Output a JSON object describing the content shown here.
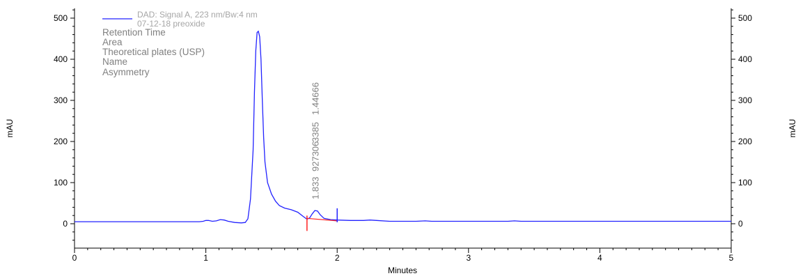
{
  "chart_data": {
    "type": "line",
    "xlabel": "Minutes",
    "ylabel_left": "mAU",
    "ylabel_right": "mAU",
    "xlim": [
      0,
      5
    ],
    "ylim": [
      -60,
      520
    ],
    "x_ticks": [
      0,
      1,
      2,
      3,
      4,
      5
    ],
    "y_ticks": [
      0,
      100,
      200,
      300,
      400,
      500
    ],
    "legend": {
      "series_label": "DAD: Signal A, 223 nm/Bw:4 nm",
      "sample_label": "07-12-18 preoxide"
    },
    "info_labels": [
      "Retention Time",
      "Area",
      "Theoretical plates (USP)",
      "Name",
      "Asymmetry"
    ],
    "series": [
      {
        "name": "DAD: Signal A, 223 nm/Bw:4 nm",
        "color": "#2222ff",
        "points": [
          [
            0.0,
            5
          ],
          [
            0.5,
            5
          ],
          [
            0.95,
            5
          ],
          [
            0.98,
            6
          ],
          [
            1.0,
            8
          ],
          [
            1.02,
            8
          ],
          [
            1.05,
            6
          ],
          [
            1.08,
            7
          ],
          [
            1.11,
            10
          ],
          [
            1.14,
            9
          ],
          [
            1.17,
            6
          ],
          [
            1.22,
            3
          ],
          [
            1.27,
            2
          ],
          [
            1.3,
            3
          ],
          [
            1.32,
            12
          ],
          [
            1.34,
            60
          ],
          [
            1.36,
            180
          ],
          [
            1.37,
            320
          ],
          [
            1.38,
            420
          ],
          [
            1.39,
            465
          ],
          [
            1.4,
            468
          ],
          [
            1.41,
            455
          ],
          [
            1.42,
            400
          ],
          [
            1.43,
            300
          ],
          [
            1.44,
            210
          ],
          [
            1.45,
            150
          ],
          [
            1.47,
            100
          ],
          [
            1.5,
            72
          ],
          [
            1.53,
            55
          ],
          [
            1.56,
            44
          ],
          [
            1.6,
            38
          ],
          [
            1.65,
            34
          ],
          [
            1.7,
            28
          ],
          [
            1.74,
            18
          ],
          [
            1.77,
            11
          ],
          [
            1.79,
            14
          ],
          [
            1.81,
            24
          ],
          [
            1.83,
            32
          ],
          [
            1.85,
            31
          ],
          [
            1.87,
            22
          ],
          [
            1.9,
            13
          ],
          [
            1.95,
            10
          ],
          [
            2.0,
            9
          ],
          [
            2.1,
            8
          ],
          [
            2.2,
            8
          ],
          [
            2.25,
            9
          ],
          [
            2.3,
            8
          ],
          [
            2.4,
            6
          ],
          [
            2.6,
            6
          ],
          [
            2.67,
            7
          ],
          [
            2.72,
            6
          ],
          [
            3.0,
            6
          ],
          [
            3.3,
            6
          ],
          [
            3.35,
            7
          ],
          [
            3.4,
            6
          ],
          [
            3.6,
            6
          ],
          [
            4.0,
            6
          ],
          [
            4.5,
            6
          ],
          [
            5.0,
            6
          ]
        ]
      }
    ],
    "baseline": {
      "color": "#ff2222",
      "from": [
        1.77,
        13
      ],
      "to": [
        2.0,
        7
      ]
    },
    "peak_annotation": {
      "x": 1.833,
      "retention_time": "1.833",
      "area": "927306",
      "plates": "3385",
      "asymmetry": "1.44666"
    }
  }
}
